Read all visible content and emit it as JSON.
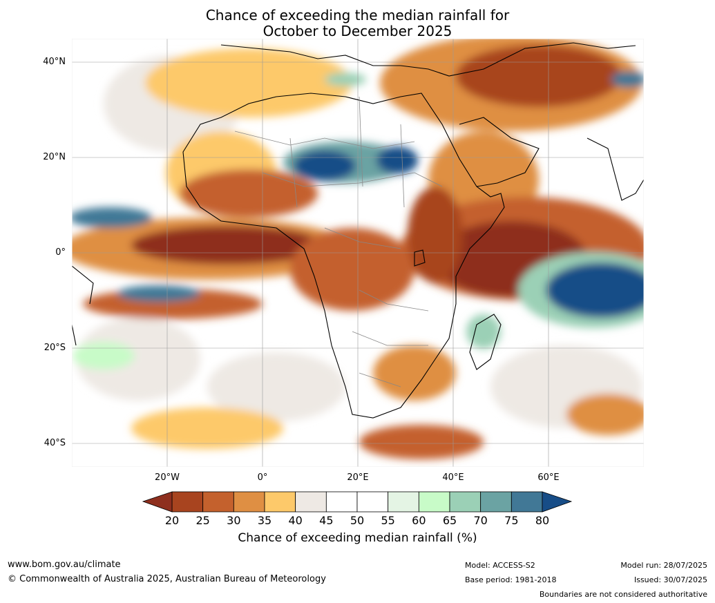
{
  "title": {
    "line1": "Chance of exceeding the median rainfall for",
    "line2": "October to December 2025"
  },
  "map": {
    "region": "Africa",
    "lat_labels": [
      "40°N",
      "20°N",
      "0°",
      "20°S",
      "40°S"
    ],
    "lon_labels": [
      "20°W",
      "0°",
      "20°E",
      "40°E",
      "60°E"
    ],
    "ocean_gridlines": true
  },
  "colorbar": {
    "ticks": [
      "20",
      "25",
      "30",
      "35",
      "40",
      "45",
      "50",
      "55",
      "60",
      "65",
      "70",
      "75",
      "80"
    ],
    "colors": [
      "#8e2f1e",
      "#a8441f",
      "#c4612d",
      "#df8f43",
      "#fdc96a",
      "#eee9e4",
      "#ffffff",
      "#ffffff",
      "#e4f4e4",
      "#c8fbc8",
      "#9bd0b6",
      "#6ba3a3",
      "#417896",
      "#174d87"
    ],
    "label": "Chance of exceeding median rainfall (%)"
  },
  "footer": {
    "website": "www.bom.gov.au/climate",
    "copyright": "© Commonwealth of Australia 2025, Australian Bureau of Meteorology",
    "model": "Model: ACCESS-S2",
    "base_period": "Base period: 1981-2018",
    "model_run": "Model run: 28/07/2025",
    "issued": "Issued: 30/07/2025",
    "disclaimer": "Boundaries are not considered authoritative"
  }
}
